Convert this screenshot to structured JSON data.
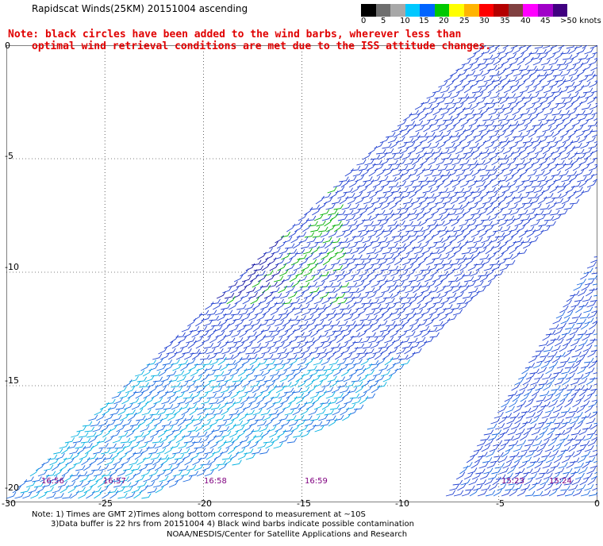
{
  "title": "Rapidscat Winds(25KM) 20151004 ascending",
  "note_line1": "Note: black circles have been added to the wind barbs, wherever less than",
  "note_line2": "optimal wind retrieval conditions are met due to the ISS attitude changes.",
  "colorbar": {
    "labels": [
      "0",
      "5",
      "10",
      "15",
      "20",
      "25",
      "30",
      "35",
      "40",
      "45",
      ">50 knots"
    ],
    "colors": [
      "#000000",
      "#6e6e6e",
      "#a8a8a8",
      "#00c8ff",
      "#0064ff",
      "#00c800",
      "#ffff00",
      "#ffb400",
      "#ff0000",
      "#b40000",
      "#804040",
      "#ff00ff",
      "#a000c8",
      "#400080"
    ]
  },
  "map": {
    "lon_labels": [
      "-30",
      "-25",
      "-20",
      "-15",
      "-10",
      "-5",
      "0"
    ],
    "lat_labels": [
      "0",
      "-5",
      "-10",
      "-15",
      "-20"
    ],
    "time_labels": [
      "16:56",
      "16:57",
      "16:58",
      "16:59",
      "15:23",
      "15:24"
    ]
  },
  "footer": {
    "line1": "Note: 1) Times are GMT 2)Times along bottom correspond to measurement at ~10S",
    "line2": "3)Data buffer is 22 hrs from 20151004 4) Black wind barbs indicate possible contamination",
    "line3": "NOAA/NESDIS/Center for Satellite Applications and Research"
  }
}
